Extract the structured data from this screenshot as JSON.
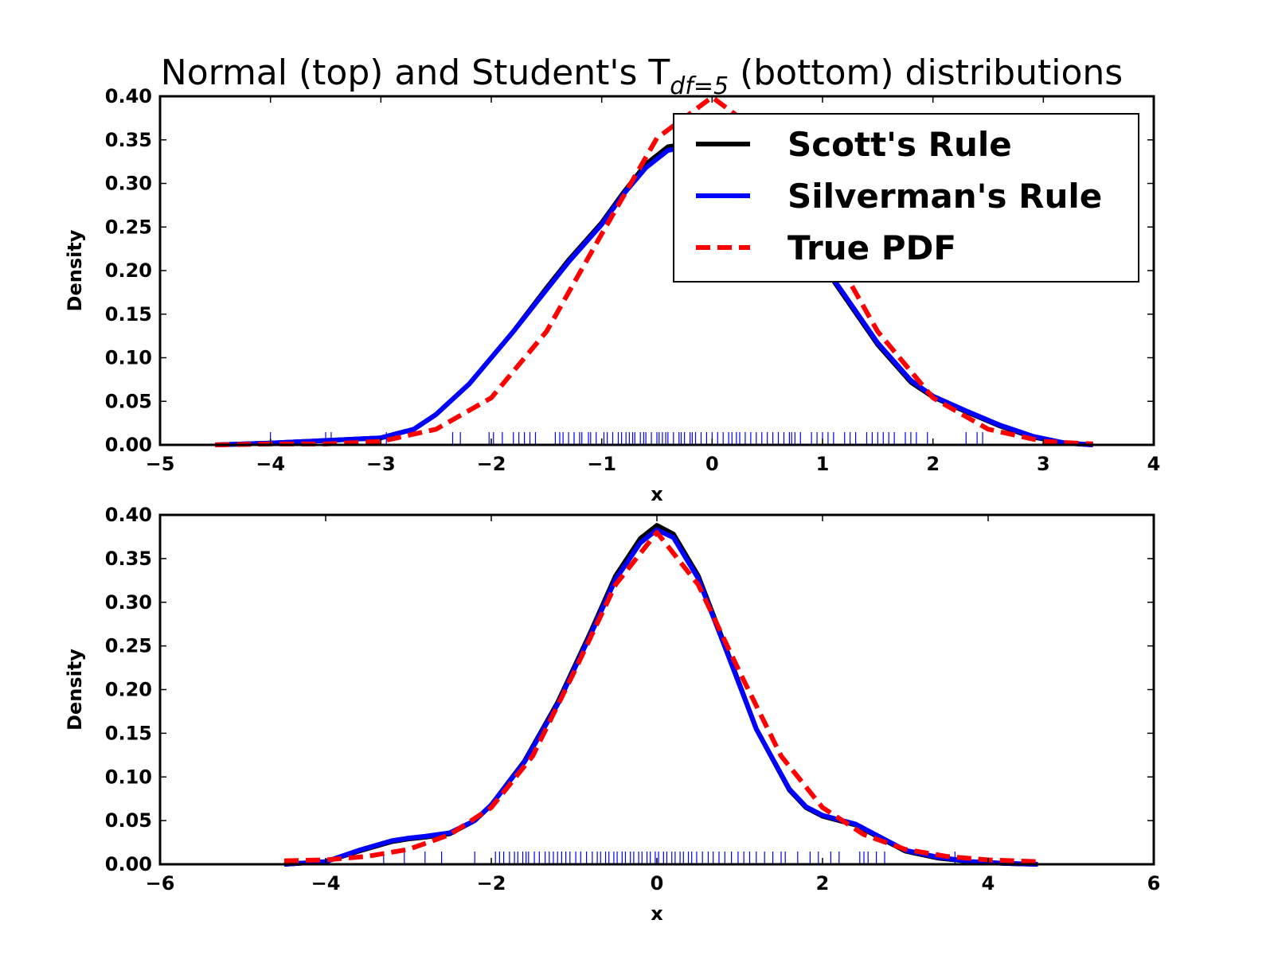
{
  "chart_data": {
    "type": "line",
    "title": "Normal (top) and Student's T",
    "title_subscript": "df=5",
    "title_suffix": " (bottom) distributions",
    "colors": {
      "scott": "#000000",
      "silverman": "#0000ff",
      "true_pdf": "#ff0000",
      "rug": "#0000ff"
    },
    "legend": {
      "placement": "upper-right of top panel",
      "entries": [
        {
          "label": "Scott's Rule",
          "color": "#000000",
          "style": "solid"
        },
        {
          "label": "Silverman's Rule",
          "color": "#0000ff",
          "style": "solid"
        },
        {
          "label": "True PDF",
          "color": "#ff0000",
          "style": "dashed"
        }
      ]
    },
    "panels": [
      {
        "name": "top",
        "xlabel": "x",
        "ylabel": "Density",
        "xlim": [
          -5,
          4
        ],
        "ylim": [
          0,
          0.4
        ],
        "xticks": [
          -5,
          -4,
          -3,
          -2,
          -1,
          0,
          1,
          2,
          3,
          4
        ],
        "xtick_labels": [
          "−5",
          "−4",
          "−3",
          "−2",
          "−1",
          "0",
          "1",
          "2",
          "3",
          "4"
        ],
        "yticks": [
          0,
          0.05,
          0.1,
          0.15,
          0.2,
          0.25,
          0.3,
          0.35,
          0.4
        ],
        "ytick_labels": [
          "0.00",
          "0.05",
          "0.10",
          "0.15",
          "0.20",
          "0.25",
          "0.30",
          "0.35",
          "0.40"
        ],
        "series": [
          {
            "name": "Scott's Rule",
            "color": "#000000",
            "style": "solid",
            "x": [
              -4.5,
              -4.0,
              -3.5,
              -3.0,
              -2.7,
              -2.5,
              -2.2,
              -2.0,
              -1.8,
              -1.5,
              -1.3,
              -1.0,
              -0.8,
              -0.6,
              -0.4,
              -0.2,
              0.0,
              0.3,
              0.6,
              0.9,
              1.2,
              1.5,
              1.8,
              2.0,
              2.3,
              2.6,
              2.9,
              3.2,
              3.45
            ],
            "y": [
              0.0,
              0.002,
              0.005,
              0.008,
              0.018,
              0.035,
              0.07,
              0.1,
              0.13,
              0.18,
              0.212,
              0.255,
              0.29,
              0.322,
              0.342,
              0.346,
              0.34,
              0.31,
              0.27,
              0.225,
              0.17,
              0.115,
              0.072,
              0.055,
              0.038,
              0.022,
              0.009,
              0.002,
              0.0
            ]
          },
          {
            "name": "Silverman's Rule",
            "color": "#0000ff",
            "style": "solid",
            "x": [
              -4.5,
              -4.0,
              -3.5,
              -3.0,
              -2.7,
              -2.5,
              -2.2,
              -2.0,
              -1.8,
              -1.5,
              -1.3,
              -1.0,
              -0.8,
              -0.6,
              -0.4,
              -0.2,
              0.0,
              0.3,
              0.6,
              0.9,
              1.2,
              1.5,
              1.8,
              2.0,
              2.3,
              2.6,
              2.9,
              3.2,
              3.45
            ],
            "y": [
              0.0,
              0.002,
              0.005,
              0.008,
              0.018,
              0.035,
              0.07,
              0.1,
              0.13,
              0.178,
              0.21,
              0.253,
              0.288,
              0.318,
              0.338,
              0.342,
              0.337,
              0.31,
              0.27,
              0.226,
              0.172,
              0.117,
              0.074,
              0.056,
              0.039,
              0.023,
              0.01,
              0.002,
              0.0
            ]
          },
          {
            "name": "True PDF",
            "color": "#ff0000",
            "style": "dashed",
            "x": [
              -4.5,
              -4.0,
              -3.5,
              -3.0,
              -2.5,
              -2.0,
              -1.5,
              -1.0,
              -0.5,
              0.0,
              0.5,
              1.0,
              1.5,
              2.0,
              2.5,
              3.0,
              3.45
            ],
            "y": [
              0.0,
              0.001,
              0.001,
              0.004,
              0.018,
              0.054,
              0.13,
              0.242,
              0.352,
              0.399,
              0.352,
              0.242,
              0.13,
              0.054,
              0.018,
              0.004,
              0.001
            ]
          }
        ],
        "rug": [
          -4.0,
          -3.5,
          -3.45,
          -2.95,
          -2.35,
          -2.28,
          -2.02,
          -1.98,
          -1.9,
          -1.8,
          -1.75,
          -1.7,
          -1.65,
          -1.6,
          -1.42,
          -1.38,
          -1.35,
          -1.3,
          -1.25,
          -1.2,
          -1.18,
          -1.12,
          -1.1,
          -1.05,
          -0.98,
          -0.95,
          -0.9,
          -0.85,
          -0.82,
          -0.78,
          -0.75,
          -0.72,
          -0.7,
          -0.65,
          -0.62,
          -0.6,
          -0.55,
          -0.5,
          -0.48,
          -0.45,
          -0.42,
          -0.4,
          -0.35,
          -0.3,
          -0.28,
          -0.25,
          -0.2,
          -0.18,
          -0.15,
          -0.1,
          -0.05,
          0.0,
          0.05,
          0.1,
          0.15,
          0.18,
          0.22,
          0.25,
          0.3,
          0.35,
          0.4,
          0.45,
          0.5,
          0.55,
          0.6,
          0.65,
          0.7,
          0.72,
          0.75,
          0.8,
          0.9,
          0.95,
          1.0,
          1.05,
          1.1,
          1.2,
          1.25,
          1.3,
          1.4,
          1.45,
          1.5,
          1.55,
          1.6,
          1.65,
          1.75,
          1.8,
          1.85,
          1.95,
          2.3,
          2.4,
          2.45
        ]
      },
      {
        "name": "bottom",
        "xlabel": "x",
        "ylabel": "Density",
        "xlim": [
          -6,
          6
        ],
        "ylim": [
          0,
          0.4
        ],
        "xticks": [
          -6,
          -4,
          -2,
          0,
          2,
          4,
          6
        ],
        "xtick_labels": [
          "−6",
          "−4",
          "−2",
          "0",
          "2",
          "4",
          "6"
        ],
        "yticks": [
          0,
          0.05,
          0.1,
          0.15,
          0.2,
          0.25,
          0.3,
          0.35,
          0.4
        ],
        "ytick_labels": [
          "0.00",
          "0.05",
          "0.10",
          "0.15",
          "0.20",
          "0.25",
          "0.30",
          "0.35",
          "0.40"
        ],
        "series": [
          {
            "name": "Scott's Rule",
            "color": "#000000",
            "style": "solid",
            "x": [
              -4.5,
              -4.0,
              -3.6,
              -3.2,
              -3.0,
              -2.8,
              -2.5,
              -2.2,
              -2.0,
              -1.6,
              -1.2,
              -0.8,
              -0.5,
              -0.2,
              0.0,
              0.2,
              0.5,
              0.8,
              1.2,
              1.6,
              1.8,
              2.0,
              2.4,
              2.7,
              3.0,
              3.4,
              3.8,
              4.2,
              4.6
            ],
            "y": [
              0.0,
              0.003,
              0.015,
              0.026,
              0.029,
              0.031,
              0.035,
              0.05,
              0.068,
              0.118,
              0.185,
              0.266,
              0.33,
              0.373,
              0.388,
              0.378,
              0.33,
              0.256,
              0.155,
              0.085,
              0.065,
              0.055,
              0.045,
              0.03,
              0.015,
              0.007,
              0.003,
              0.001,
              0.0
            ]
          },
          {
            "name": "Silverman's Rule",
            "color": "#0000ff",
            "style": "solid",
            "x": [
              -4.5,
              -4.0,
              -3.6,
              -3.2,
              -3.0,
              -2.8,
              -2.5,
              -2.2,
              -2.0,
              -1.6,
              -1.2,
              -0.8,
              -0.5,
              -0.2,
              0.0,
              0.2,
              0.5,
              0.8,
              1.2,
              1.6,
              1.8,
              2.0,
              2.4,
              2.7,
              3.0,
              3.4,
              3.8,
              4.2,
              4.6
            ],
            "y": [
              0.0,
              0.003,
              0.016,
              0.027,
              0.03,
              0.032,
              0.036,
              0.05,
              0.068,
              0.117,
              0.183,
              0.263,
              0.326,
              0.368,
              0.383,
              0.374,
              0.327,
              0.254,
              0.155,
              0.086,
              0.066,
              0.056,
              0.046,
              0.031,
              0.016,
              0.008,
              0.003,
              0.001,
              0.0
            ]
          },
          {
            "name": "True PDF",
            "color": "#ff0000",
            "style": "dashed",
            "x": [
              -4.5,
              -4.0,
              -3.5,
              -3.0,
              -2.5,
              -2.0,
              -1.5,
              -1.0,
              -0.5,
              0.0,
              0.5,
              1.0,
              1.5,
              2.0,
              2.5,
              3.0,
              3.5,
              4.0,
              4.6
            ],
            "y": [
              0.004,
              0.005,
              0.009,
              0.017,
              0.034,
              0.065,
              0.124,
              0.22,
              0.32,
              0.38,
              0.32,
              0.22,
              0.124,
              0.065,
              0.034,
              0.017,
              0.009,
              0.005,
              0.003
            ]
          }
        ],
        "rug": [
          -3.3,
          -3.05,
          -2.8,
          -2.6,
          -2.2,
          -1.95,
          -1.9,
          -1.85,
          -1.78,
          -1.72,
          -1.68,
          -1.62,
          -1.58,
          -1.55,
          -1.48,
          -1.42,
          -1.35,
          -1.3,
          -1.25,
          -1.2,
          -1.15,
          -1.1,
          -1.05,
          -0.98,
          -0.92,
          -0.85,
          -0.78,
          -0.72,
          -0.68,
          -0.62,
          -0.58,
          -0.52,
          -0.48,
          -0.42,
          -0.38,
          -0.32,
          -0.28,
          -0.22,
          -0.18,
          -0.12,
          -0.08,
          -0.02,
          0.02,
          0.08,
          0.12,
          0.18,
          0.22,
          0.28,
          0.32,
          0.38,
          0.42,
          0.48,
          0.55,
          0.62,
          0.68,
          0.75,
          0.82,
          0.9,
          0.98,
          1.05,
          1.12,
          1.2,
          1.3,
          1.4,
          1.5,
          1.55,
          1.7,
          1.85,
          1.95,
          2.1,
          2.2,
          2.45,
          2.5,
          2.55,
          2.65,
          2.75,
          3.6
        ]
      }
    ]
  }
}
